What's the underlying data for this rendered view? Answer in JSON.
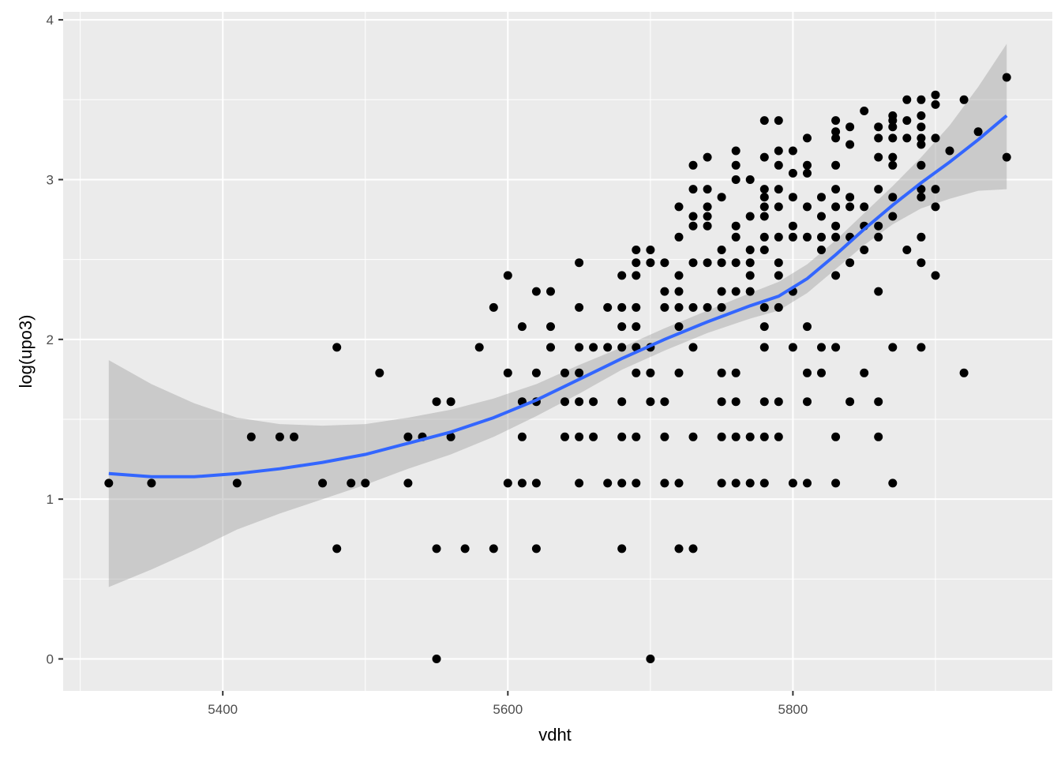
{
  "chart_data": {
    "type": "scatter",
    "title": "",
    "xlabel": "vdht",
    "ylabel": "log(upo3)",
    "xlim": [
      5288,
      5982
    ],
    "ylim": [
      -0.2,
      4.05
    ],
    "x_ticks": [
      5400,
      5600,
      5800
    ],
    "x_tick_labels": [
      "5400",
      "5600",
      "5800"
    ],
    "y_ticks": [
      0,
      1,
      2,
      3,
      4
    ],
    "y_tick_labels": [
      "0",
      "1",
      "2",
      "3",
      "4"
    ],
    "grid": true,
    "legend": "none",
    "colors": {
      "panel": "#ebebeb",
      "grid": "#ffffff",
      "points": "#000000",
      "smooth": "#3366ff",
      "ribbon": "#999999"
    },
    "points": [
      [
        5320,
        1.1
      ],
      [
        5350,
        1.1
      ],
      [
        5410,
        1.1
      ],
      [
        5420,
        1.39
      ],
      [
        5440,
        1.39
      ],
      [
        5450,
        1.39
      ],
      [
        5470,
        1.1
      ],
      [
        5480,
        1.95
      ],
      [
        5480,
        0.69
      ],
      [
        5490,
        1.1
      ],
      [
        5500,
        1.1
      ],
      [
        5510,
        1.79
      ],
      [
        5530,
        1.39
      ],
      [
        5530,
        1.1
      ],
      [
        5540,
        1.39
      ],
      [
        5550,
        1.61
      ],
      [
        5550,
        0.69
      ],
      [
        5550,
        0.0
      ],
      [
        5560,
        1.61
      ],
      [
        5560,
        1.39
      ],
      [
        5570,
        0.69
      ],
      [
        5580,
        1.95
      ],
      [
        5590,
        2.2
      ],
      [
        5590,
        0.69
      ],
      [
        5600,
        2.4
      ],
      [
        5600,
        1.79
      ],
      [
        5600,
        1.1
      ],
      [
        5610,
        2.08
      ],
      [
        5610,
        1.61
      ],
      [
        5610,
        1.39
      ],
      [
        5610,
        1.1
      ],
      [
        5620,
        2.3
      ],
      [
        5620,
        1.79
      ],
      [
        5620,
        1.61
      ],
      [
        5620,
        1.1
      ],
      [
        5620,
        0.69
      ],
      [
        5630,
        2.3
      ],
      [
        5630,
        2.08
      ],
      [
        5630,
        1.95
      ],
      [
        5640,
        1.79
      ],
      [
        5640,
        1.61
      ],
      [
        5640,
        1.39
      ],
      [
        5650,
        2.48
      ],
      [
        5650,
        2.2
      ],
      [
        5650,
        1.95
      ],
      [
        5650,
        1.79
      ],
      [
        5650,
        1.61
      ],
      [
        5650,
        1.39
      ],
      [
        5650,
        1.1
      ],
      [
        5660,
        1.95
      ],
      [
        5660,
        1.61
      ],
      [
        5660,
        1.39
      ],
      [
        5670,
        2.2
      ],
      [
        5670,
        1.95
      ],
      [
        5670,
        1.1
      ],
      [
        5680,
        2.4
      ],
      [
        5680,
        2.2
      ],
      [
        5680,
        2.08
      ],
      [
        5680,
        1.95
      ],
      [
        5680,
        1.61
      ],
      [
        5680,
        1.39
      ],
      [
        5680,
        1.1
      ],
      [
        5680,
        0.69
      ],
      [
        5690,
        2.56
      ],
      [
        5690,
        2.48
      ],
      [
        5690,
        2.4
      ],
      [
        5690,
        2.2
      ],
      [
        5690,
        2.08
      ],
      [
        5690,
        1.95
      ],
      [
        5690,
        1.79
      ],
      [
        5690,
        1.39
      ],
      [
        5690,
        1.1
      ],
      [
        5700,
        2.56
      ],
      [
        5700,
        2.48
      ],
      [
        5700,
        1.95
      ],
      [
        5700,
        1.79
      ],
      [
        5700,
        1.61
      ],
      [
        5700,
        0.0
      ],
      [
        5710,
        2.48
      ],
      [
        5710,
        2.3
      ],
      [
        5710,
        2.2
      ],
      [
        5710,
        1.61
      ],
      [
        5710,
        1.39
      ],
      [
        5710,
        1.1
      ],
      [
        5720,
        2.83
      ],
      [
        5720,
        2.64
      ],
      [
        5720,
        2.4
      ],
      [
        5720,
        2.3
      ],
      [
        5720,
        2.2
      ],
      [
        5720,
        2.08
      ],
      [
        5720,
        1.79
      ],
      [
        5720,
        1.1
      ],
      [
        5720,
        0.69
      ],
      [
        5730,
        3.09
      ],
      [
        5730,
        2.94
      ],
      [
        5730,
        2.77
      ],
      [
        5730,
        2.71
      ],
      [
        5730,
        2.48
      ],
      [
        5730,
        2.2
      ],
      [
        5730,
        1.95
      ],
      [
        5730,
        1.39
      ],
      [
        5730,
        0.69
      ],
      [
        5740,
        3.14
      ],
      [
        5740,
        2.94
      ],
      [
        5740,
        2.83
      ],
      [
        5740,
        2.77
      ],
      [
        5740,
        2.71
      ],
      [
        5740,
        2.48
      ],
      [
        5740,
        2.2
      ],
      [
        5750,
        2.89
      ],
      [
        5750,
        2.56
      ],
      [
        5750,
        2.48
      ],
      [
        5750,
        2.3
      ],
      [
        5750,
        2.2
      ],
      [
        5750,
        1.79
      ],
      [
        5750,
        1.61
      ],
      [
        5750,
        1.39
      ],
      [
        5750,
        1.1
      ],
      [
        5760,
        3.18
      ],
      [
        5760,
        3.09
      ],
      [
        5760,
        3.0
      ],
      [
        5760,
        2.71
      ],
      [
        5760,
        2.64
      ],
      [
        5760,
        2.48
      ],
      [
        5760,
        2.3
      ],
      [
        5760,
        1.79
      ],
      [
        5760,
        1.61
      ],
      [
        5760,
        1.39
      ],
      [
        5760,
        1.1
      ],
      [
        5770,
        3.0
      ],
      [
        5770,
        2.77
      ],
      [
        5770,
        2.56
      ],
      [
        5770,
        2.48
      ],
      [
        5770,
        2.4
      ],
      [
        5770,
        2.3
      ],
      [
        5770,
        1.39
      ],
      [
        5770,
        1.1
      ],
      [
        5780,
        3.37
      ],
      [
        5780,
        3.14
      ],
      [
        5780,
        2.94
      ],
      [
        5780,
        2.89
      ],
      [
        5780,
        2.83
      ],
      [
        5780,
        2.77
      ],
      [
        5780,
        2.64
      ],
      [
        5780,
        2.56
      ],
      [
        5780,
        2.2
      ],
      [
        5780,
        2.08
      ],
      [
        5780,
        1.95
      ],
      [
        5780,
        1.61
      ],
      [
        5780,
        1.39
      ],
      [
        5780,
        1.1
      ],
      [
        5790,
        3.37
      ],
      [
        5790,
        3.18
      ],
      [
        5790,
        3.09
      ],
      [
        5790,
        2.94
      ],
      [
        5790,
        2.83
      ],
      [
        5790,
        2.64
      ],
      [
        5790,
        2.48
      ],
      [
        5790,
        2.4
      ],
      [
        5790,
        2.2
      ],
      [
        5790,
        1.61
      ],
      [
        5790,
        1.39
      ],
      [
        5800,
        3.18
      ],
      [
        5800,
        3.04
      ],
      [
        5800,
        2.89
      ],
      [
        5800,
        2.71
      ],
      [
        5800,
        2.64
      ],
      [
        5800,
        2.3
      ],
      [
        5800,
        1.95
      ],
      [
        5800,
        1.1
      ],
      [
        5810,
        3.26
      ],
      [
        5810,
        3.09
      ],
      [
        5810,
        3.04
      ],
      [
        5810,
        2.83
      ],
      [
        5810,
        2.64
      ],
      [
        5810,
        2.08
      ],
      [
        5810,
        1.79
      ],
      [
        5810,
        1.61
      ],
      [
        5810,
        1.1
      ],
      [
        5820,
        2.89
      ],
      [
        5820,
        2.77
      ],
      [
        5820,
        2.64
      ],
      [
        5820,
        2.56
      ],
      [
        5820,
        1.95
      ],
      [
        5820,
        1.79
      ],
      [
        5830,
        3.37
      ],
      [
        5830,
        3.3
      ],
      [
        5830,
        3.26
      ],
      [
        5830,
        3.09
      ],
      [
        5830,
        2.94
      ],
      [
        5830,
        2.83
      ],
      [
        5830,
        2.71
      ],
      [
        5830,
        2.64
      ],
      [
        5830,
        2.4
      ],
      [
        5830,
        1.95
      ],
      [
        5830,
        1.39
      ],
      [
        5830,
        1.1
      ],
      [
        5840,
        3.33
      ],
      [
        5840,
        3.22
      ],
      [
        5840,
        2.89
      ],
      [
        5840,
        2.83
      ],
      [
        5840,
        2.64
      ],
      [
        5840,
        2.48
      ],
      [
        5840,
        1.61
      ],
      [
        5850,
        3.43
      ],
      [
        5850,
        2.83
      ],
      [
        5850,
        2.71
      ],
      [
        5850,
        2.56
      ],
      [
        5850,
        1.79
      ],
      [
        5860,
        3.33
      ],
      [
        5860,
        3.26
      ],
      [
        5860,
        3.14
      ],
      [
        5860,
        2.94
      ],
      [
        5860,
        2.71
      ],
      [
        5860,
        2.64
      ],
      [
        5860,
        2.3
      ],
      [
        5860,
        1.61
      ],
      [
        5860,
        1.39
      ],
      [
        5870,
        3.4
      ],
      [
        5870,
        3.37
      ],
      [
        5870,
        3.33
      ],
      [
        5870,
        3.26
      ],
      [
        5870,
        3.14
      ],
      [
        5870,
        3.09
      ],
      [
        5870,
        2.89
      ],
      [
        5870,
        2.77
      ],
      [
        5870,
        1.95
      ],
      [
        5870,
        1.1
      ],
      [
        5880,
        3.5
      ],
      [
        5880,
        3.37
      ],
      [
        5880,
        3.26
      ],
      [
        5880,
        2.56
      ],
      [
        5890,
        3.5
      ],
      [
        5890,
        3.4
      ],
      [
        5890,
        3.33
      ],
      [
        5890,
        3.26
      ],
      [
        5890,
        3.22
      ],
      [
        5890,
        3.09
      ],
      [
        5890,
        2.94
      ],
      [
        5890,
        2.89
      ],
      [
        5890,
        2.64
      ],
      [
        5890,
        2.48
      ],
      [
        5890,
        1.95
      ],
      [
        5900,
        3.53
      ],
      [
        5900,
        3.47
      ],
      [
        5900,
        3.26
      ],
      [
        5900,
        2.94
      ],
      [
        5900,
        2.83
      ],
      [
        5900,
        2.4
      ],
      [
        5910,
        3.18
      ],
      [
        5920,
        3.5
      ],
      [
        5920,
        1.79
      ],
      [
        5930,
        3.3
      ],
      [
        5950,
        3.64
      ],
      [
        5950,
        3.14
      ]
    ],
    "smooth_line": [
      [
        5320,
        1.16
      ],
      [
        5350,
        1.14
      ],
      [
        5380,
        1.14
      ],
      [
        5410,
        1.16
      ],
      [
        5440,
        1.19
      ],
      [
        5470,
        1.23
      ],
      [
        5500,
        1.28
      ],
      [
        5530,
        1.35
      ],
      [
        5560,
        1.42
      ],
      [
        5590,
        1.51
      ],
      [
        5620,
        1.62
      ],
      [
        5650,
        1.75
      ],
      [
        5680,
        1.88
      ],
      [
        5710,
        2.0
      ],
      [
        5740,
        2.11
      ],
      [
        5770,
        2.21
      ],
      [
        5790,
        2.27
      ],
      [
        5810,
        2.38
      ],
      [
        5830,
        2.53
      ],
      [
        5850,
        2.69
      ],
      [
        5870,
        2.84
      ],
      [
        5890,
        2.98
      ],
      [
        5910,
        3.11
      ],
      [
        5930,
        3.25
      ],
      [
        5950,
        3.4
      ]
    ],
    "confidence_band": {
      "upper": [
        [
          5320,
          1.87
        ],
        [
          5350,
          1.72
        ],
        [
          5380,
          1.6
        ],
        [
          5410,
          1.51
        ],
        [
          5440,
          1.47
        ],
        [
          5470,
          1.46
        ],
        [
          5500,
          1.47
        ],
        [
          5530,
          1.51
        ],
        [
          5560,
          1.56
        ],
        [
          5590,
          1.63
        ],
        [
          5620,
          1.72
        ],
        [
          5650,
          1.84
        ],
        [
          5680,
          1.95
        ],
        [
          5710,
          2.07
        ],
        [
          5740,
          2.18
        ],
        [
          5770,
          2.29
        ],
        [
          5790,
          2.36
        ],
        [
          5810,
          2.47
        ],
        [
          5830,
          2.62
        ],
        [
          5850,
          2.79
        ],
        [
          5870,
          2.96
        ],
        [
          5890,
          3.14
        ],
        [
          5910,
          3.34
        ],
        [
          5930,
          3.58
        ],
        [
          5950,
          3.85
        ]
      ],
      "lower": [
        [
          5320,
          0.45
        ],
        [
          5350,
          0.56
        ],
        [
          5380,
          0.68
        ],
        [
          5410,
          0.81
        ],
        [
          5440,
          0.91
        ],
        [
          5470,
          1.0
        ],
        [
          5500,
          1.09
        ],
        [
          5530,
          1.19
        ],
        [
          5560,
          1.28
        ],
        [
          5590,
          1.39
        ],
        [
          5620,
          1.52
        ],
        [
          5650,
          1.66
        ],
        [
          5680,
          1.81
        ],
        [
          5710,
          1.93
        ],
        [
          5740,
          2.04
        ],
        [
          5770,
          2.13
        ],
        [
          5790,
          2.18
        ],
        [
          5810,
          2.29
        ],
        [
          5830,
          2.44
        ],
        [
          5850,
          2.59
        ],
        [
          5870,
          2.72
        ],
        [
          5890,
          2.82
        ],
        [
          5910,
          2.88
        ],
        [
          5930,
          2.93
        ],
        [
          5950,
          2.94
        ]
      ]
    }
  }
}
